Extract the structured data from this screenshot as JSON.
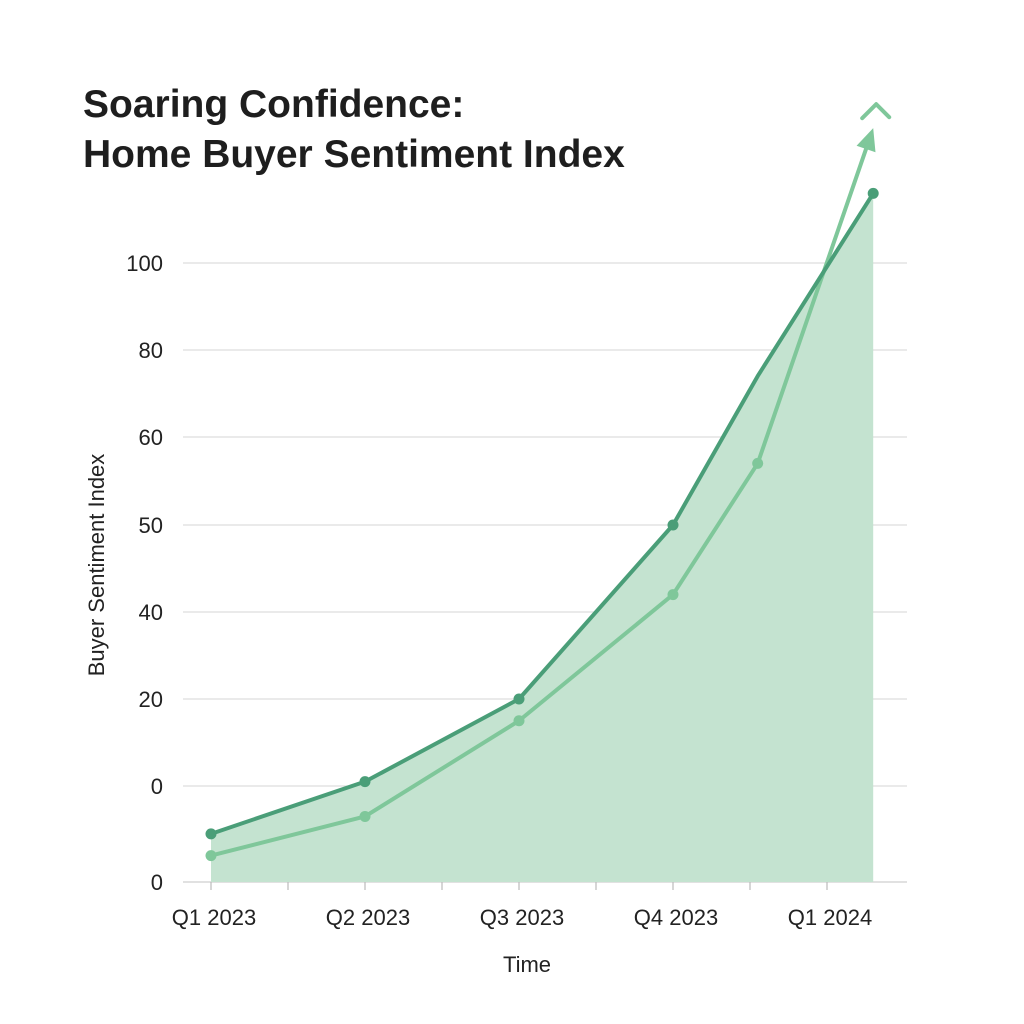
{
  "chart_data": {
    "type": "line",
    "title": [
      "Soaring Confidence:",
      "Home Buyer Sentiment Index"
    ],
    "xlabel": "Time",
    "ylabel": "Buyer Sentiment Index",
    "x_tick_labels": [
      "Q1 2023",
      "Q2 2023",
      "Q3 2023",
      "Q4 2023",
      "Q1 2024"
    ],
    "y_tick_labels": [
      "100",
      "80",
      "60",
      "50",
      "40",
      "20",
      "0",
      "0"
    ],
    "grid": true,
    "colors": {
      "dark_line": "#4a9e78",
      "light_line": "#7fc79a",
      "fill": "#c4e3d0",
      "grid": "#dddddd"
    },
    "series": [
      {
        "style": "dark",
        "area_fill": true,
        "points": [
          {
            "x": "Q1 2023",
            "y": -11,
            "marker": true
          },
          {
            "x": "Q2 2023",
            "y": 1,
            "marker": true
          },
          {
            "x": "Q3 2023",
            "y": 20,
            "marker": true
          },
          {
            "x": "Q4 2023",
            "y": 50,
            "marker": true
          },
          {
            "x": "Q4 2023–Q1 2024",
            "y": 74,
            "marker": false
          },
          {
            "x": "after Q1 2024",
            "y": 116,
            "marker": true
          }
        ]
      },
      {
        "style": "light",
        "arrow_end": true,
        "points": [
          {
            "x": "Q1 2023",
            "y": -16,
            "marker": true
          },
          {
            "x": "Q2 2023",
            "y": -7,
            "marker": true
          },
          {
            "x": "Q3 2023",
            "y": 15,
            "marker": true
          },
          {
            "x": "Q4 2023",
            "y": 42,
            "marker": true
          },
          {
            "x": "Q4 2023–Q1 2024",
            "y": 57,
            "marker": true
          },
          {
            "x": "after Q1 2024",
            "y": 131,
            "marker": false
          }
        ]
      }
    ]
  }
}
